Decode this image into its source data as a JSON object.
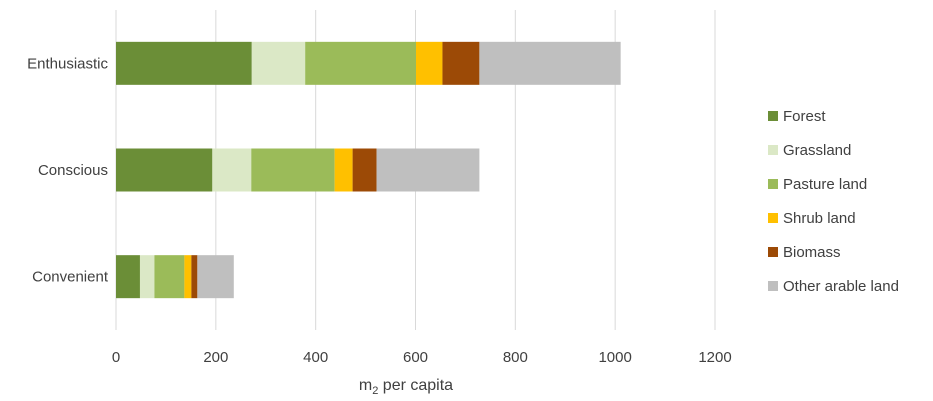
{
  "chart_data": {
    "type": "bar",
    "orientation": "horizontal",
    "stacked": true,
    "title": "",
    "xlabel": "m",
    "xlabel_sub": "2",
    "xlabel_suffix": " per capita",
    "ylabel": "",
    "xlim": [
      0,
      1200
    ],
    "xticks": [
      "0",
      "200",
      "400",
      "600",
      "800",
      "1000",
      "1200"
    ],
    "grid": true,
    "legend_position": "right",
    "categories": [
      "Enthusiastic",
      "Conscious",
      "Convenient"
    ],
    "series": [
      {
        "name": "Forest",
        "color": "#6b8e37",
        "values": [
          272,
          193,
          48
        ]
      },
      {
        "name": "Grassland",
        "color": "#dbe8c6",
        "values": [
          107,
          78,
          29
        ]
      },
      {
        "name": "Pasture land",
        "color": "#9bbb59",
        "values": [
          222,
          167,
          60
        ]
      },
      {
        "name": "Shrub land",
        "color": "#ffc000",
        "values": [
          53,
          36,
          14
        ]
      },
      {
        "name": "Biomass",
        "color": "#9c4a06",
        "values": [
          74,
          48,
          12
        ]
      },
      {
        "name": "Other arable land",
        "color": "#bfbfbf",
        "values": [
          283,
          206,
          73
        ]
      }
    ]
  }
}
